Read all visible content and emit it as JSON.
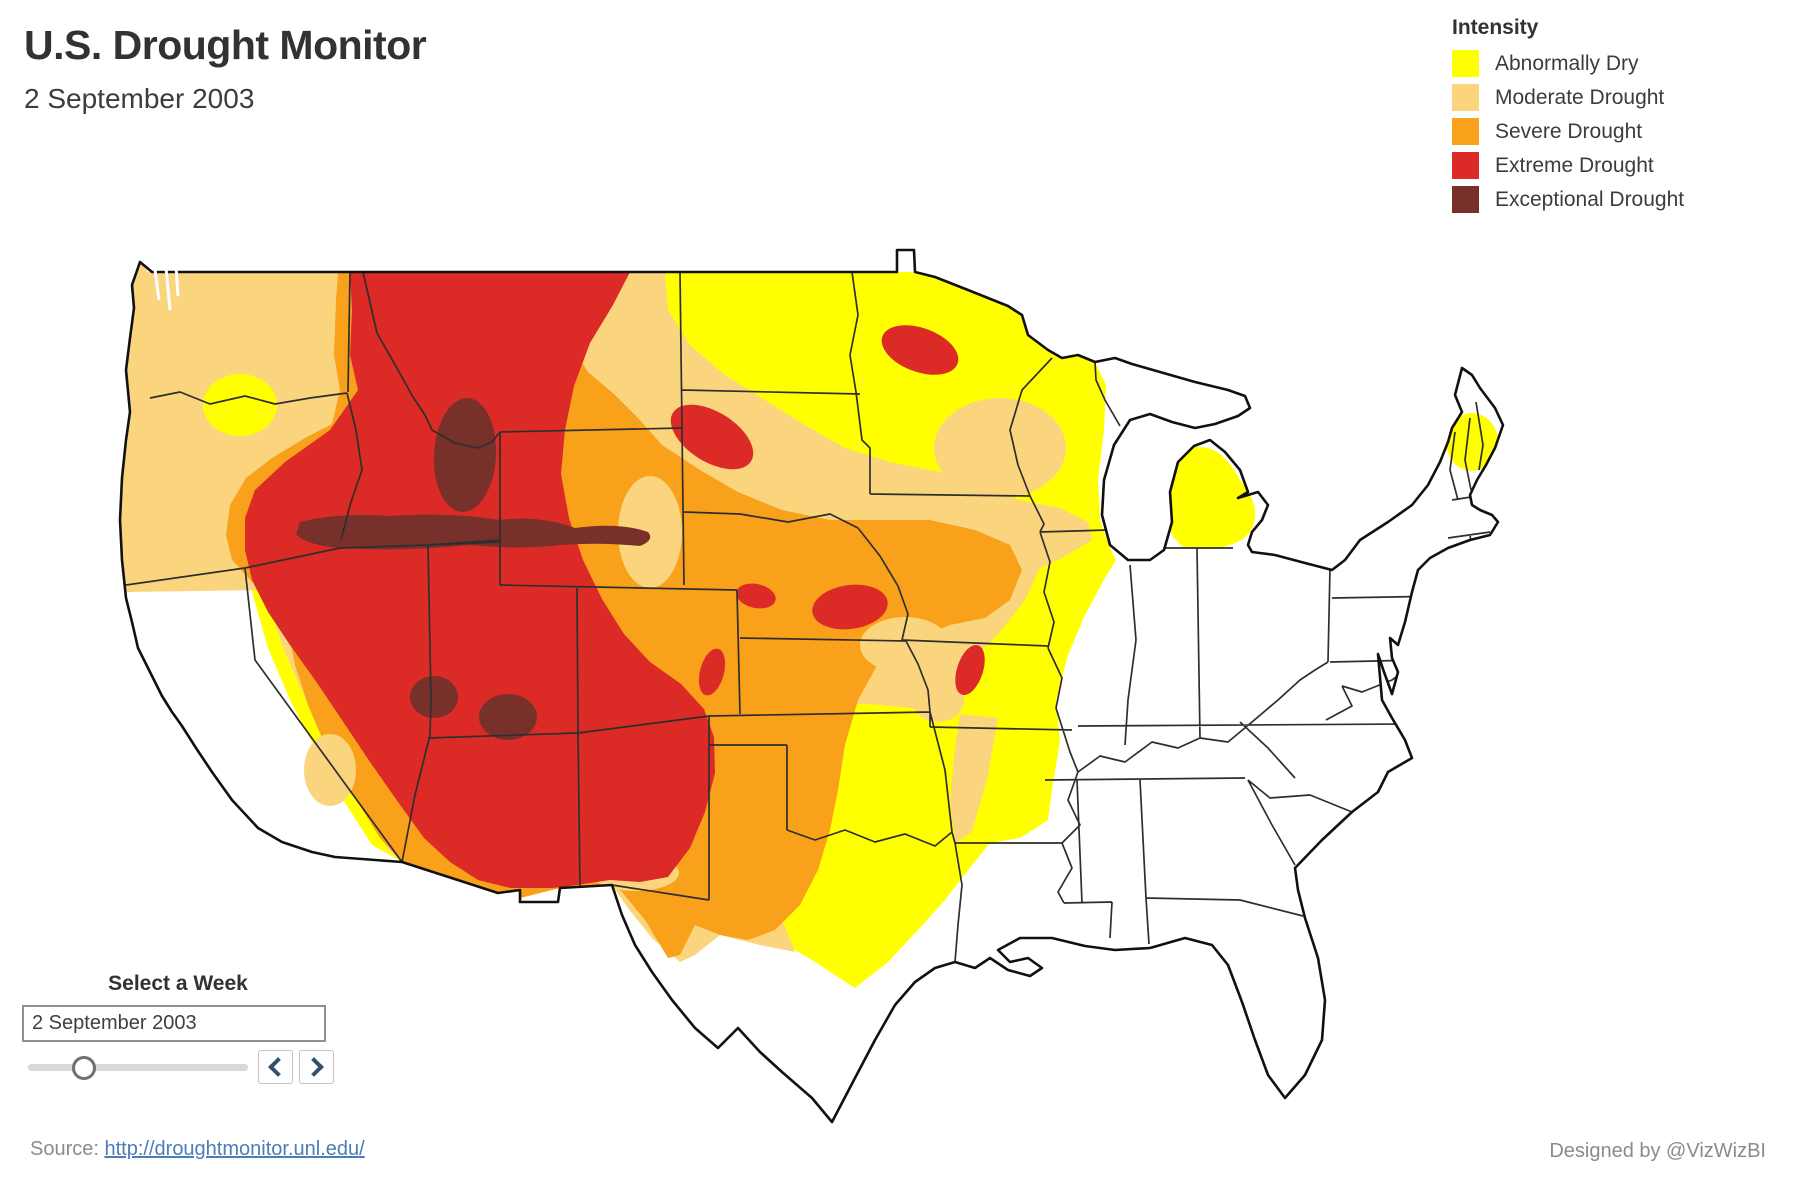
{
  "header": {
    "title": "U.S. Drought Monitor",
    "subtitle": "2 September 2003"
  },
  "legend": {
    "title": "Intensity",
    "items": [
      {
        "code": "D0",
        "label": "Abnormally Dry",
        "color": "#FFFF00"
      },
      {
        "code": "D1",
        "label": "Moderate Drought",
        "color": "#FBD57E"
      },
      {
        "code": "D2",
        "label": "Severe Drought",
        "color": "#F9A11B"
      },
      {
        "code": "D3",
        "label": "Extreme Drought",
        "color": "#DC2B26"
      },
      {
        "code": "D4",
        "label": "Exceptional Drought",
        "color": "#77312A"
      }
    ]
  },
  "week_selector": {
    "label": "Select a Week",
    "value": "2 September 2003",
    "slider_percent": 24,
    "prev_icon": "chevron-left-icon",
    "next_icon": "chevron-right-icon"
  },
  "footer": {
    "source_label": "Source:",
    "source_link": "http://droughtmonitor.unl.edu/",
    "credit": "Designed by @VizWizBI"
  },
  "chart_data": {
    "type": "choropleth_map",
    "title": "U.S. Drought Monitor",
    "date": "2 September 2003",
    "region": "Contiguous United States",
    "legend_position": "top-right",
    "categories": [
      "Abnormally Dry",
      "Moderate Drought",
      "Severe Drought",
      "Extreme Drought",
      "Exceptional Drought"
    ],
    "colors": [
      "#FFFF00",
      "#FBD57E",
      "#F9A11B",
      "#DC2B26",
      "#77312A"
    ],
    "no_drought_color": "#FFFFFF",
    "coverage": {
      "exceptional_drought": [
        "central Idaho",
        "belt along northern Nevada-Utah border",
        "two pockets in southern Utah / southern Nevada"
      ],
      "extreme_drought": [
        "western Montana",
        "Idaho",
        "southeastern Oregon",
        "most of Nevada",
        "Utah",
        "western Colorado",
        "northeastern Arizona",
        "central New Mexico",
        "central South Dakota blob",
        "eastern North Dakota blob",
        "Nebraska-Iowa border blobs",
        "central Kansas blob",
        "eastern Colorado finger"
      ],
      "severe_drought": [
        "central Montana band",
        "Wyoming",
        "Arizona",
        "New Mexico",
        "western Nebraska and Kansas",
        "central Iowa bulge"
      ],
      "moderate_drought": [
        "Washington",
        "Oregon",
        "northeastern California",
        "western Dakotas",
        "southern Minnesota",
        "Iowa",
        "Kansas",
        "Oklahoma",
        "Texas panhandle",
        "central Wisconsin"
      ],
      "abnormally_dry": [
        "eastern North Dakota",
        "Minnesota",
        "northern Wisconsin",
        "lower Michigan",
        "western Illinois and Missouri edge",
        "north-central Texas tongue",
        "Sierra Nevada strip of California",
        "blob near Washington-Oregon border",
        "central Maine pocket"
      ],
      "no_drought": [
        "California coast and Central Valley",
        "south and east Texas",
        "Gulf Coast",
        "Southeast",
        "Ohio Valley",
        "Mid-Atlantic",
        "Northeast except central Maine"
      ]
    }
  }
}
